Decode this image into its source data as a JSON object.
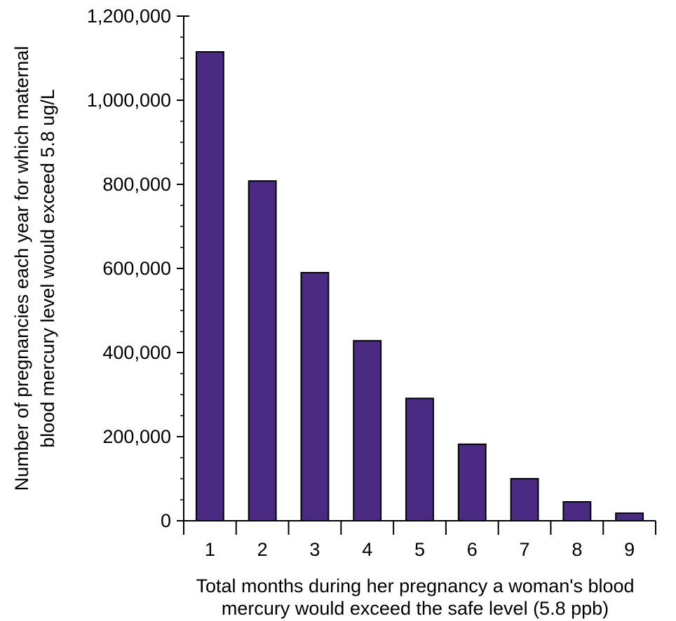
{
  "chart_data": {
    "type": "bar",
    "categories": [
      "1",
      "2",
      "3",
      "4",
      "5",
      "6",
      "7",
      "8",
      "9"
    ],
    "values": [
      1115000,
      808000,
      590000,
      428000,
      291000,
      182000,
      100000,
      45000,
      18000
    ],
    "ylim": [
      0,
      1200000
    ],
    "yticks": [
      "0",
      "200,000",
      "400,000",
      "600,000",
      "800,000",
      "1,000,000",
      "1,200,000"
    ],
    "ylabel_lines": [
      "Number of pregnancies each year for which maternal",
      "blood mercury level would exceed 5.8 ug/L"
    ],
    "xlabel_lines": [
      "Total months during her pregnancy a woman's blood",
      "mercury would exceed the safe level (5.8 ppb)"
    ],
    "bar_color": "#4a2a82",
    "grid": false
  }
}
